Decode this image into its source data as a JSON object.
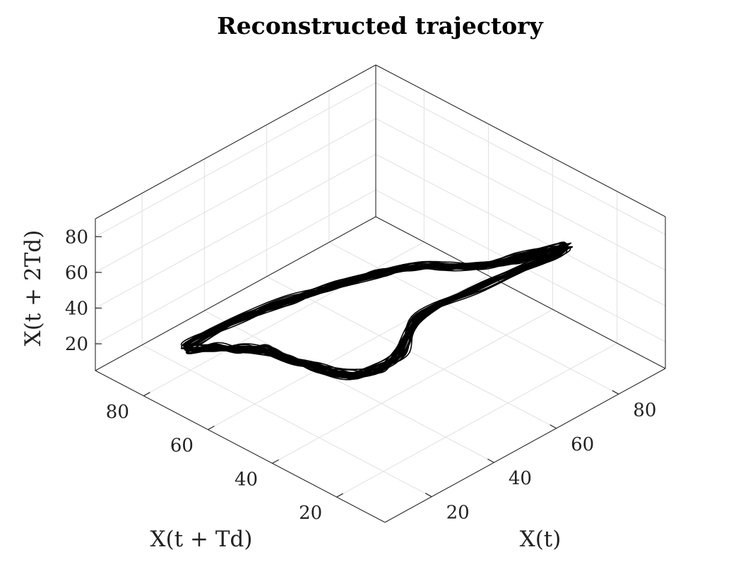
{
  "chart_data": {
    "type": "line",
    "projection": "3d-isometric",
    "title": "Reconstructed trajectory",
    "xlabel": "X(t)",
    "ylabel": "X(t + Td)",
    "zlabel": "X(t + 2Td)",
    "xlim": [
      5,
      95
    ],
    "ylim": [
      5,
      95
    ],
    "zlim": [
      5,
      90
    ],
    "xticks": [
      20,
      40,
      60,
      80
    ],
    "yticks": [
      20,
      40,
      60,
      80
    ],
    "zticks": [
      20,
      40,
      60,
      80
    ],
    "grid": true,
    "box": true,
    "line_color": "#000000",
    "series": [
      {
        "loop_count": 30,
        "points": [
          [
            30,
            18,
            85
          ],
          [
            18,
            13,
            80
          ],
          [
            14,
            16,
            72
          ],
          [
            13,
            24,
            62
          ],
          [
            14,
            35,
            55
          ],
          [
            16,
            45,
            48
          ],
          [
            19,
            56,
            40
          ],
          [
            20,
            64,
            32
          ],
          [
            20,
            72,
            25
          ],
          [
            19,
            80,
            18
          ],
          [
            26,
            84,
            12
          ],
          [
            40,
            84,
            11
          ],
          [
            52,
            80,
            14
          ],
          [
            60,
            74,
            20
          ],
          [
            66,
            66,
            28
          ],
          [
            70,
            58,
            36
          ],
          [
            72,
            50,
            42
          ],
          [
            74,
            42,
            48
          ],
          [
            77,
            33,
            58
          ],
          [
            80,
            22,
            72
          ],
          [
            70,
            16,
            82
          ],
          [
            48,
            16,
            86
          ]
        ]
      }
    ]
  }
}
